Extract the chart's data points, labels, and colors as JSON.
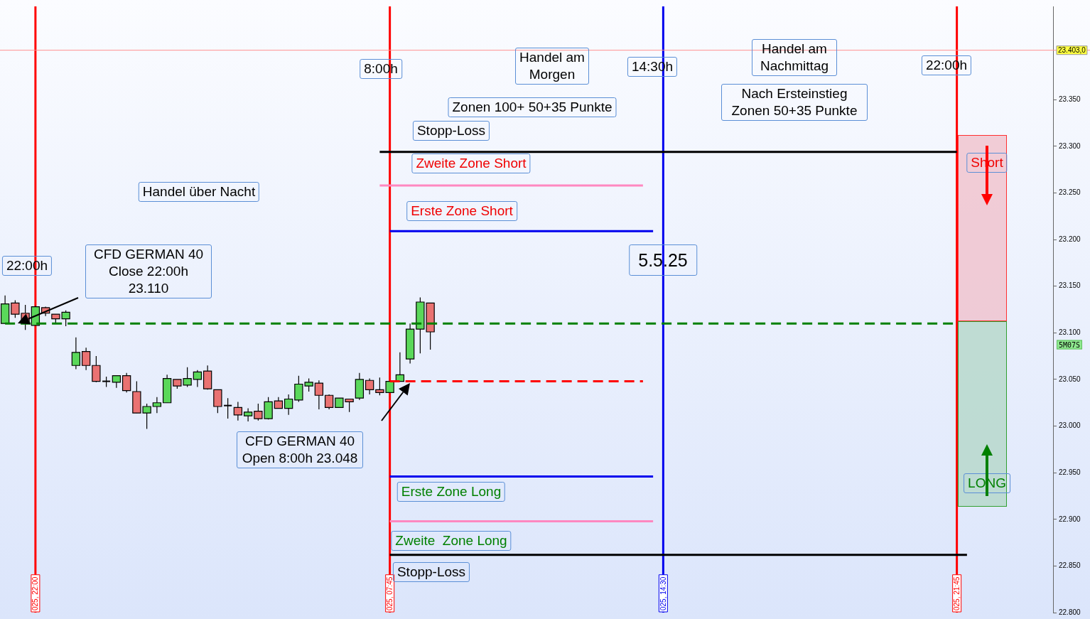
{
  "chart_data": {
    "type": "candlestick",
    "categories": [
      null,
      null,
      null,
      "025, 22:00",
      null,
      null,
      null,
      null,
      null,
      null,
      null,
      null,
      null,
      null,
      null,
      null,
      null,
      null,
      null,
      null,
      null,
      null,
      null,
      null,
      null,
      null,
      null,
      null,
      null,
      null,
      null,
      null,
      null,
      null,
      null,
      null,
      null,
      null,
      "025, 07:45",
      null,
      null,
      null,
      null,
      null,
      null,
      null,
      null,
      null,
      null,
      null,
      null,
      null,
      null,
      null,
      null,
      null,
      null,
      null,
      null,
      null,
      null,
      null,
      null,
      null,
      null,
      "025, 14:30",
      null,
      null,
      null,
      null,
      null,
      null,
      null,
      null,
      null,
      null,
      null,
      null,
      null,
      null,
      null,
      null,
      null,
      null,
      null,
      null,
      null,
      null,
      null,
      null,
      null,
      null,
      null,
      null,
      "025, 21:45",
      null,
      null,
      null,
      null,
      null,
      null,
      null,
      null,
      null
    ],
    "ohlc": [
      [
        23110,
        23140,
        23110,
        23131
      ],
      [
        23132,
        23135,
        23116,
        23120
      ],
      [
        23121,
        23130,
        23103,
        23110
      ],
      [
        23108,
        23129,
        23108,
        23128
      ],
      [
        23127,
        23128,
        23118,
        23121
      ],
      [
        23120,
        23120,
        23110,
        23115
      ],
      [
        23115,
        23124,
        23107,
        23122
      ],
      [
        23065,
        23095,
        23061,
        23079
      ],
      [
        23080,
        23084,
        23060,
        23065
      ],
      [
        23065,
        23075,
        23047,
        23048
      ],
      [
        23048,
        23053,
        23042,
        23048
      ],
      [
        23047,
        23054,
        23041,
        23054
      ],
      [
        23054,
        23057,
        23036,
        23038
      ],
      [
        23037,
        23048,
        23014,
        23014
      ],
      [
        23014,
        23024,
        22997,
        23021
      ],
      [
        23021,
        23031,
        23014,
        23025
      ],
      [
        23025,
        23055,
        23025,
        23051
      ],
      [
        23050,
        23050,
        23040,
        23043
      ],
      [
        23044,
        23063,
        23042,
        23051
      ],
      [
        23050,
        23060,
        23042,
        23058
      ],
      [
        23059,
        23065,
        23039,
        23040
      ],
      [
        23039,
        23039,
        23014,
        23021
      ],
      [
        23022,
        23030,
        23008,
        23021
      ],
      [
        23020,
        23026,
        23006,
        23012
      ],
      [
        23011,
        23019,
        23005,
        23015
      ],
      [
        23016,
        23024,
        23006,
        23008
      ],
      [
        23008,
        23031,
        23007,
        23026
      ],
      [
        23027,
        23031,
        23019,
        23019
      ],
      [
        23019,
        23034,
        23012,
        23029
      ],
      [
        23028,
        23054,
        23026,
        23045
      ],
      [
        23043,
        23051,
        23037,
        23047
      ],
      [
        23046,
        23049,
        23018,
        23033
      ],
      [
        23033,
        23034,
        23018,
        23020
      ],
      [
        23020,
        23030,
        23020,
        23030
      ],
      [
        23029,
        23029,
        23015,
        23026
      ],
      [
        23030,
        23057,
        23028,
        23050
      ],
      [
        23049,
        23051,
        23034,
        23039
      ],
      [
        23039,
        23052,
        23033,
        23036
      ],
      [
        23036,
        23048,
        23036,
        23048
      ],
      [
        23048,
        23079,
        23048,
        23055
      ],
      [
        23072,
        23110,
        23067,
        23104
      ],
      [
        23104,
        23138,
        23078,
        23133
      ],
      [
        23132,
        23132,
        23082,
        23101
      ],
      null,
      null,
      null,
      null,
      null,
      null,
      null,
      null,
      null,
      null,
      null,
      null,
      null,
      null,
      null,
      null,
      null,
      null,
      null,
      null,
      null,
      null,
      null,
      null,
      null,
      null,
      null,
      null,
      null,
      null,
      null,
      null,
      null,
      null,
      null,
      null,
      null,
      null,
      null,
      null,
      null,
      null,
      null,
      null,
      null,
      null,
      null,
      null,
      null,
      null,
      null,
      null,
      null,
      null,
      null,
      null,
      null,
      null,
      null,
      null,
      null
    ],
    "series": [
      {
        "type": "line",
        "color": "#008000",
        "line_style": "dashed",
        "values": [
          23110,
          23110,
          23110,
          23110,
          23110,
          23110,
          23110,
          23110,
          23110,
          23110,
          23110,
          23110,
          23110,
          23110,
          23110,
          23110,
          23110,
          23110,
          23110,
          23110,
          23110,
          23110,
          23110,
          23110,
          23110,
          23110,
          23110,
          23110,
          23110,
          23110,
          23110,
          23110,
          23110,
          23110,
          23110,
          23110,
          23110,
          23110,
          23110,
          23110,
          23110,
          23110,
          23110,
          23110,
          23110,
          23110,
          23110,
          23110,
          23110,
          23110,
          23110,
          23110,
          23110,
          23110,
          23110,
          23110,
          23110,
          23110,
          23110,
          23110,
          23110,
          23110,
          23110,
          23110,
          23110,
          23110,
          23110,
          23110,
          23110,
          23110,
          23110,
          23110,
          23110,
          23110,
          23110,
          23110,
          23110,
          23110,
          23110,
          23110,
          23110,
          23110,
          23110,
          23110,
          23110,
          23110,
          23110,
          23110,
          23110,
          23110,
          23110,
          23110,
          23110,
          23110,
          23110,
          null,
          null,
          null,
          null,
          null,
          null,
          null,
          null,
          null
        ]
      },
      {
        "type": "line",
        "color": "#000000",
        "line_style": "solid",
        "values": [
          null,
          null,
          null,
          null,
          null,
          null,
          null,
          null,
          null,
          null,
          null,
          null,
          null,
          null,
          null,
          null,
          null,
          null,
          null,
          null,
          null,
          null,
          null,
          null,
          null,
          null,
          null,
          null,
          null,
          null,
          null,
          null,
          null,
          null,
          null,
          null,
          null,
          23294,
          23294,
          23294,
          23294,
          23294,
          23294,
          23294,
          23294,
          23294,
          23294,
          23294,
          23294,
          23294,
          23294,
          23294,
          23294,
          23294,
          23294,
          23294,
          23294,
          23294,
          23294,
          23294,
          23294,
          23294,
          23294,
          23294,
          23294,
          23294,
          23294,
          23294,
          23294,
          23294,
          23294,
          23294,
          23294,
          23294,
          23294,
          23294,
          23294,
          23294,
          23294,
          23294,
          23294,
          23294,
          23294,
          23294,
          23294,
          23294,
          23294,
          23294,
          23294,
          23294,
          23294,
          23294,
          23294,
          23294,
          23294,
          null,
          null,
          null,
          null,
          null,
          null,
          null,
          null,
          null
        ]
      },
      {
        "type": "line",
        "color": "#ff88c0",
        "line_style": "solid",
        "values": [
          null,
          null,
          null,
          null,
          null,
          null,
          null,
          null,
          null,
          null,
          null,
          null,
          null,
          null,
          null,
          null,
          null,
          null,
          null,
          null,
          null,
          null,
          null,
          null,
          null,
          null,
          null,
          null,
          null,
          null,
          null,
          null,
          null,
          null,
          null,
          null,
          null,
          23258,
          23258,
          23258,
          23258,
          23258,
          23258,
          23258,
          23258,
          23258,
          23258,
          23258,
          23258,
          23258,
          23258,
          23258,
          23258,
          23258,
          23258,
          23258,
          23258,
          23258,
          23258,
          23258,
          23258,
          23258,
          23258,
          23258,
          null,
          null,
          null,
          null,
          null,
          null,
          null,
          null,
          null,
          null,
          null,
          null,
          null,
          null,
          null,
          null,
          null,
          null,
          null,
          null,
          null,
          null,
          null,
          null,
          null,
          null,
          null,
          null,
          null,
          null,
          null,
          null,
          null,
          null,
          null,
          null,
          null,
          null,
          null,
          null
        ]
      },
      {
        "type": "line",
        "color": "#0000ee",
        "line_style": "solid",
        "values": [
          null,
          null,
          null,
          null,
          null,
          null,
          null,
          null,
          null,
          null,
          null,
          null,
          null,
          null,
          null,
          null,
          null,
          null,
          null,
          null,
          null,
          null,
          null,
          null,
          null,
          null,
          null,
          null,
          null,
          null,
          null,
          null,
          null,
          null,
          null,
          null,
          null,
          null,
          23209,
          23209,
          23209,
          23209,
          23209,
          23209,
          23209,
          23209,
          23209,
          23209,
          23209,
          23209,
          23209,
          23209,
          23209,
          23209,
          23209,
          23209,
          23209,
          23209,
          23209,
          23209,
          23209,
          23209,
          23209,
          23209,
          23209,
          null,
          null,
          null,
          null,
          null,
          null,
          null,
          null,
          null,
          null,
          null,
          null,
          null,
          null,
          null,
          null,
          null,
          null,
          null,
          null,
          null,
          null,
          null,
          null,
          null,
          null,
          null,
          null,
          null,
          null,
          null,
          null,
          null,
          null,
          null,
          null,
          null,
          null,
          null
        ]
      },
      {
        "type": "line",
        "color": "#ff0000",
        "line_style": "dashed",
        "values": [
          null,
          null,
          null,
          null,
          null,
          null,
          null,
          null,
          null,
          null,
          null,
          null,
          null,
          null,
          null,
          null,
          null,
          null,
          null,
          null,
          null,
          null,
          null,
          null,
          null,
          null,
          null,
          null,
          null,
          null,
          null,
          null,
          null,
          null,
          null,
          null,
          null,
          null,
          23048,
          23048,
          23048,
          23048,
          23048,
          23048,
          23048,
          23048,
          23048,
          23048,
          23048,
          23048,
          23048,
          23048,
          23048,
          23048,
          23048,
          23048,
          23048,
          23048,
          23048,
          23048,
          23048,
          23048,
          23048,
          23048,
          null,
          null,
          null,
          null,
          null,
          null,
          null,
          null,
          null,
          null,
          null,
          null,
          null,
          null,
          null,
          null,
          null,
          null,
          null,
          null,
          null,
          null,
          null,
          null,
          null,
          null,
          null,
          null,
          null,
          null,
          null,
          null,
          null,
          null,
          null,
          null,
          null,
          null,
          null,
          null
        ]
      },
      {
        "type": "line",
        "color": "#0000ee",
        "line_style": "solid",
        "values": [
          null,
          null,
          null,
          null,
          null,
          null,
          null,
          null,
          null,
          null,
          null,
          null,
          null,
          null,
          null,
          null,
          null,
          null,
          null,
          null,
          null,
          null,
          null,
          null,
          null,
          null,
          null,
          null,
          null,
          null,
          null,
          null,
          null,
          null,
          null,
          null,
          null,
          null,
          22946,
          22946,
          22946,
          22946,
          22946,
          22946,
          22946,
          22946,
          22946,
          22946,
          22946,
          22946,
          22946,
          22946,
          22946,
          22946,
          22946,
          22946,
          22946,
          22946,
          22946,
          22946,
          22946,
          22946,
          22946,
          22946,
          22946,
          null,
          null,
          null,
          null,
          null,
          null,
          null,
          null,
          null,
          null,
          null,
          null,
          null,
          null,
          null,
          null,
          null,
          null,
          null,
          null,
          null,
          null,
          null,
          null,
          null,
          null,
          null,
          null,
          null,
          null,
          null,
          null,
          null,
          null,
          null,
          null,
          null,
          null,
          null
        ]
      },
      {
        "type": "line",
        "color": "#ff88c0",
        "line_style": "solid",
        "values": [
          null,
          null,
          null,
          null,
          null,
          null,
          null,
          null,
          null,
          null,
          null,
          null,
          null,
          null,
          null,
          null,
          null,
          null,
          null,
          null,
          null,
          null,
          null,
          null,
          null,
          null,
          null,
          null,
          null,
          null,
          null,
          null,
          null,
          null,
          null,
          null,
          null,
          null,
          22898,
          22898,
          22898,
          22898,
          22898,
          22898,
          22898,
          22898,
          22898,
          22898,
          22898,
          22898,
          22898,
          22898,
          22898,
          22898,
          22898,
          22898,
          22898,
          22898,
          22898,
          22898,
          22898,
          22898,
          22898,
          22898,
          22898,
          null,
          null,
          null,
          null,
          null,
          null,
          null,
          null,
          null,
          null,
          null,
          null,
          null,
          null,
          null,
          null,
          null,
          null,
          null,
          null,
          null,
          null,
          null,
          null,
          null,
          null,
          null,
          null,
          null,
          null,
          null,
          null,
          null,
          null,
          null,
          null,
          null,
          null,
          null
        ]
      },
      {
        "type": "line",
        "color": "#000000",
        "line_style": "solid",
        "values": [
          null,
          null,
          null,
          null,
          null,
          null,
          null,
          null,
          null,
          null,
          null,
          null,
          null,
          null,
          null,
          null,
          null,
          null,
          null,
          null,
          null,
          null,
          null,
          null,
          null,
          null,
          null,
          null,
          null,
          null,
          null,
          null,
          null,
          null,
          null,
          null,
          null,
          null,
          22862,
          22862,
          22862,
          22862,
          22862,
          22862,
          22862,
          22862,
          22862,
          22862,
          22862,
          22862,
          22862,
          22862,
          22862,
          22862,
          22862,
          22862,
          22862,
          22862,
          22862,
          22862,
          22862,
          22862,
          22862,
          22862,
          22862,
          22862,
          22862,
          22862,
          22862,
          22862,
          22862,
          22862,
          22862,
          22862,
          22862,
          22862,
          22862,
          22862,
          22862,
          22862,
          22862,
          22862,
          22862,
          22862,
          22862,
          22862,
          22862,
          22862,
          22862,
          22862,
          22862,
          22862,
          22862,
          22862,
          22862,
          22862,
          null,
          null,
          null,
          null,
          null,
          null,
          null,
          null
        ]
      }
    ],
    "ylim": [
      22800,
      23450
    ],
    "yticks": [
      {
        "value": 22800,
        "label": "22.800"
      },
      {
        "value": 22850,
        "label": "22.850"
      },
      {
        "value": 22900,
        "label": "22.900"
      },
      {
        "value": 22950,
        "label": "22.950"
      },
      {
        "value": 23000,
        "label": "23.000"
      },
      {
        "value": 23050,
        "label": "23.050"
      },
      {
        "value": 23100,
        "label": "23.100"
      },
      {
        "value": 23150,
        "label": "23.150"
      },
      {
        "value": 23200,
        "label": "23.200"
      },
      {
        "value": 23250,
        "label": "23.250"
      },
      {
        "value": 23300,
        "label": "23.300"
      },
      {
        "value": 23350,
        "label": "23.350"
      }
    ],
    "ref_lines": [
      {
        "axis": "x",
        "value": "025, 22:00",
        "color": "#ff0000"
      },
      {
        "axis": "x",
        "value": "025, 07:45",
        "color": "#ff0000"
      },
      {
        "axis": "x",
        "value": "025, 14:30",
        "color": "#0000ee"
      },
      {
        "axis": "x",
        "value": "025, 21:45",
        "color": "#ff0000"
      },
      {
        "axis": "y",
        "value": 23403,
        "label": "23.403,0",
        "color": "#ff9090"
      }
    ],
    "annotations": [
      "8:00h",
      "Handel am Morgen",
      "14:30h",
      "Handel am Nachmittag",
      "22:00h",
      "Zonen 100+ 50+35 Punkte",
      "Nach Ersteinstieg Zonen 50+35 Punkte",
      "Stopp-Loss",
      "Zweite Zone Short",
      "Handel über Nacht",
      "Erste Zone Short",
      "5.5.25",
      "22:00h",
      "CFD GERMAN 40 Close 22:00h 23.110",
      "CFD GERMAN 40 Open 8:00h 23.048",
      "Erste Zone Long",
      "Zweite  Zone Long",
      "Stopp-Loss",
      "Short",
      "LONG",
      "5M07S"
    ],
    "marker": "none",
    "grid": false,
    "legend": false
  }
}
